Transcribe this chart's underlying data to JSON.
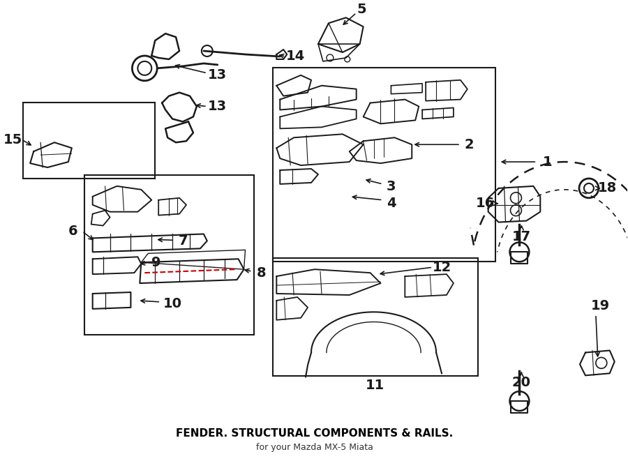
{
  "title": "FENDER. STRUCTURAL COMPONENTS & RAILS.",
  "subtitle": "for your Mazda MX-5 Miata",
  "bg_color": "#ffffff",
  "line_color": "#1a1a1a",
  "fig_width": 9.0,
  "fig_height": 6.61,
  "dpi": 100
}
